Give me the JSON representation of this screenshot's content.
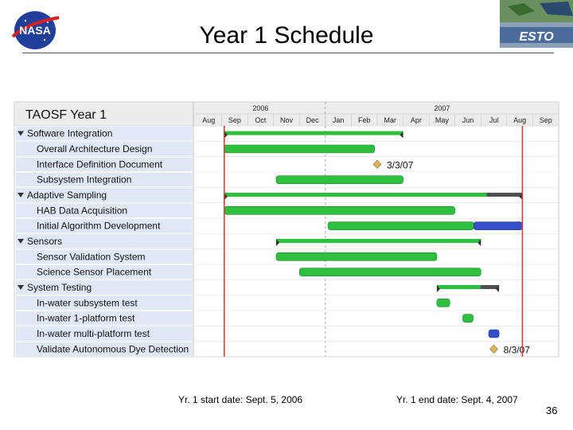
{
  "slide": {
    "title": "Year 1 Schedule",
    "start_note": "Yr. 1 start date: Sept. 5, 2006",
    "end_note": "Yr. 1 end date: Sept. 4, 2007",
    "number": "36",
    "logo_left_text": "NASA",
    "logo_right_text": "ESTO"
  },
  "chart_data": {
    "type": "gantt",
    "title": "TAOSF  Year 1",
    "years": [
      {
        "label": "2006",
        "start_month": 0
      },
      {
        "label": "2007",
        "start_month": 5
      }
    ],
    "months": [
      "Aug",
      "Sep",
      "Oct",
      "Nov",
      "Dec",
      "Jan",
      "Feb",
      "Mar",
      "Apr",
      "May",
      "Jun",
      "Jul",
      "Aug",
      "Sep"
    ],
    "markers": [
      {
        "name": "Yr. 1 start",
        "month": 1.1,
        "color": "#e03030"
      },
      {
        "name": "Yr. 1 end",
        "month": 12.6,
        "color": "#e03030"
      }
    ],
    "colors": {
      "task": "#2fbf3f",
      "blue": "#3350c8",
      "summary_remaining": "#505050",
      "milestone": "#e0b060",
      "row_label_bg": "#e0e8f6"
    },
    "tasks": [
      {
        "name": "Software Integration",
        "level": 0,
        "type": "summary",
        "start": 1.1,
        "end": 8.0,
        "progress": 1.0
      },
      {
        "name": "Overall Architecture Design",
        "level": 1,
        "type": "task",
        "start": 1.1,
        "end": 6.9,
        "progress": 1.0
      },
      {
        "name": "Interface Definition Document",
        "level": 1,
        "type": "milestone",
        "at": 7.0,
        "label": "3/3/07"
      },
      {
        "name": "Subsystem Integration",
        "level": 1,
        "type": "task",
        "start": 3.1,
        "end": 8.0,
        "progress": 1.0
      },
      {
        "name": "Adaptive Sampling",
        "level": 0,
        "type": "summary",
        "start": 1.1,
        "end": 12.6,
        "progress": 0.88
      },
      {
        "name": "HAB Data Acquisition",
        "level": 1,
        "type": "task",
        "start": 1.1,
        "end": 10.0,
        "progress": 1.0
      },
      {
        "name": "Initial Algorithm Development",
        "level": 1,
        "type": "task",
        "start": 5.1,
        "end": 12.6,
        "progress": 0.75
      },
      {
        "name": "Sensors",
        "level": 0,
        "type": "summary",
        "start": 3.1,
        "end": 11.0,
        "progress": 1.0
      },
      {
        "name": "Sensor Validation System",
        "level": 1,
        "type": "task",
        "start": 3.1,
        "end": 9.3,
        "progress": 1.0
      },
      {
        "name": "Science Sensor Placement",
        "level": 1,
        "type": "task",
        "start": 4.0,
        "end": 11.0,
        "progress": 1.0
      },
      {
        "name": "System Testing",
        "level": 0,
        "type": "summary",
        "start": 9.3,
        "end": 11.7,
        "progress": 0.7
      },
      {
        "name": "In-water subsystem test",
        "level": 1,
        "type": "task",
        "start": 9.3,
        "end": 9.8,
        "progress": 1.0
      },
      {
        "name": "In-water 1-platform test",
        "level": 1,
        "type": "task",
        "start": 10.3,
        "end": 10.7,
        "progress": 1.0
      },
      {
        "name": "In-water multi-platform test",
        "level": 1,
        "type": "task",
        "start": 11.3,
        "end": 11.7,
        "progress": 0.0
      },
      {
        "name": "Validate Autonomous Dye Detection",
        "level": 1,
        "type": "milestone",
        "at": 11.5,
        "label": "8/3/07"
      }
    ]
  }
}
